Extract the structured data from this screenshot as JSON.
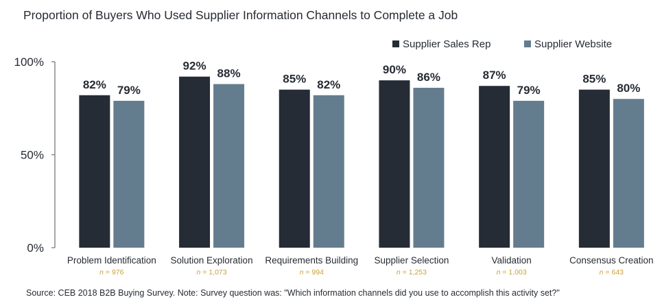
{
  "title": "Proportion of Buyers Who Used Supplier Information Channels to Complete a Job",
  "source": "Source: CEB 2018 B2B Buying Survey. Note: Survey question was: \"Which information channels did you use to accomplish this activity set?\"",
  "colors": {
    "sales_rep": "#262c35",
    "website": "#647d8e",
    "axis": "#8a8a8a",
    "n_label": "#c8a23a",
    "text": "#262b33"
  },
  "chart_data": {
    "type": "bar",
    "title": "Proportion of Buyers Who Used Supplier Information Channels to Complete a Job",
    "categories": [
      "Problem Identification",
      "Solution Exploration",
      "Requirements Building",
      "Supplier Selection",
      "Validation",
      "Consensus Creation"
    ],
    "n_labels": [
      "n = 976",
      "n = 1,073",
      "n = 994",
      "n = 1,253",
      "n = 1,003",
      "n = 643"
    ],
    "series": [
      {
        "name": "Supplier Sales Rep",
        "values": [
          82,
          92,
          85,
          90,
          87,
          85
        ],
        "labels": [
          "82%",
          "92%",
          "85%",
          "90%",
          "87%",
          "85%"
        ]
      },
      {
        "name": "Supplier Website",
        "values": [
          79,
          88,
          82,
          86,
          79,
          80
        ],
        "labels": [
          "79%",
          "88%",
          "82%",
          "86%",
          "79%",
          "80%"
        ]
      }
    ],
    "ylim": [
      0,
      100
    ],
    "yticks": [
      0,
      50,
      100
    ],
    "ytick_labels": [
      "0%",
      "50%",
      "100%"
    ],
    "xlabel": "",
    "ylabel": "",
    "grid": false,
    "legend_position": "top-right"
  }
}
